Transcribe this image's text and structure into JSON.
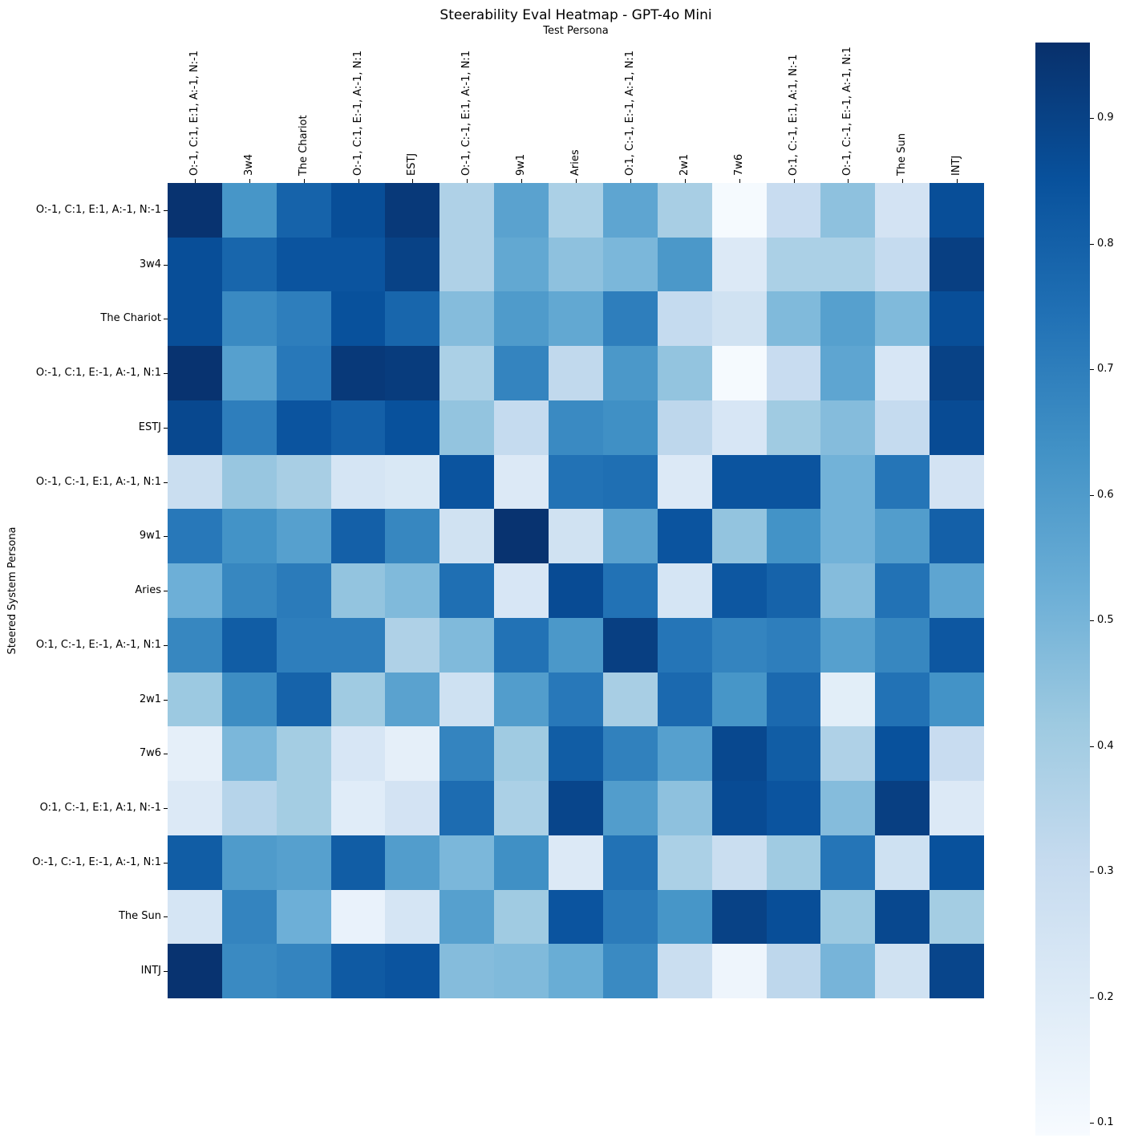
{
  "chart_data": {
    "type": "heatmap",
    "title": "Steerability Eval Heatmap - GPT-4o Mini",
    "xlabel": "Test Persona",
    "ylabel": "Steered System Persona",
    "x_categories": [
      "O:-1, C:1, E:1, A:-1, N:-1",
      "3w4",
      "The Chariot",
      "O:-1, C:1, E:-1, A:-1, N:1",
      "ESTJ",
      "O:-1, C:-1, E:1, A:-1, N:1",
      "9w1",
      "Aries",
      "O:1, C:-1, E:-1, A:-1, N:1",
      "2w1",
      "7w6",
      "O:1, C:-1, E:1, A:1, N:-1",
      "O:-1, C:-1, E:-1, A:-1, N:1",
      "The Sun",
      "INTJ"
    ],
    "y_categories": [
      "O:-1, C:1, E:1, A:-1, N:-1",
      "3w4",
      "The Chariot",
      "O:-1, C:1, E:-1, A:-1, N:1",
      "ESTJ",
      "O:-1, C:-1, E:1, A:-1, N:1",
      "9w1",
      "Aries",
      "O:1, C:-1, E:-1, A:-1, N:1",
      "2w1",
      "7w6",
      "O:1, C:-1, E:1, A:1, N:-1",
      "O:-1, C:-1, E:-1, A:-1, N:1",
      "The Sun",
      "INTJ"
    ],
    "matrix": [
      [
        0.95,
        0.62,
        0.79,
        0.86,
        0.93,
        0.37,
        0.57,
        0.38,
        0.56,
        0.39,
        0.1,
        0.3,
        0.45,
        0.25,
        0.86
      ],
      [
        0.86,
        0.78,
        0.84,
        0.84,
        0.9,
        0.37,
        0.55,
        0.45,
        0.49,
        0.61,
        0.21,
        0.38,
        0.38,
        0.31,
        0.91
      ],
      [
        0.86,
        0.66,
        0.7,
        0.85,
        0.78,
        0.47,
        0.6,
        0.55,
        0.7,
        0.31,
        0.26,
        0.48,
        0.58,
        0.48,
        0.86
      ],
      [
        0.95,
        0.58,
        0.72,
        0.93,
        0.92,
        0.38,
        0.68,
        0.32,
        0.61,
        0.44,
        0.1,
        0.3,
        0.56,
        0.23,
        0.9
      ],
      [
        0.88,
        0.7,
        0.84,
        0.8,
        0.85,
        0.44,
        0.31,
        0.66,
        0.64,
        0.33,
        0.23,
        0.41,
        0.47,
        0.31,
        0.87
      ],
      [
        0.29,
        0.43,
        0.39,
        0.24,
        0.22,
        0.84,
        0.21,
        0.74,
        0.75,
        0.21,
        0.84,
        0.84,
        0.51,
        0.73,
        0.25
      ],
      [
        0.72,
        0.63,
        0.58,
        0.8,
        0.67,
        0.26,
        0.95,
        0.26,
        0.57,
        0.84,
        0.44,
        0.63,
        0.51,
        0.59,
        0.8
      ],
      [
        0.52,
        0.67,
        0.71,
        0.44,
        0.48,
        0.75,
        0.23,
        0.87,
        0.74,
        0.24,
        0.83,
        0.79,
        0.47,
        0.74,
        0.56
      ],
      [
        0.67,
        0.81,
        0.7,
        0.7,
        0.37,
        0.48,
        0.74,
        0.61,
        0.91,
        0.73,
        0.68,
        0.7,
        0.58,
        0.67,
        0.83
      ],
      [
        0.42,
        0.65,
        0.79,
        0.41,
        0.57,
        0.27,
        0.59,
        0.72,
        0.39,
        0.77,
        0.62,
        0.77,
        0.18,
        0.74,
        0.63
      ],
      [
        0.17,
        0.49,
        0.4,
        0.23,
        0.17,
        0.68,
        0.41,
        0.81,
        0.69,
        0.58,
        0.88,
        0.81,
        0.37,
        0.85,
        0.3
      ],
      [
        0.21,
        0.35,
        0.4,
        0.19,
        0.25,
        0.76,
        0.38,
        0.89,
        0.59,
        0.45,
        0.87,
        0.84,
        0.47,
        0.91,
        0.21
      ],
      [
        0.81,
        0.6,
        0.58,
        0.81,
        0.59,
        0.49,
        0.64,
        0.21,
        0.74,
        0.38,
        0.29,
        0.41,
        0.73,
        0.27,
        0.85
      ],
      [
        0.24,
        0.68,
        0.52,
        0.15,
        0.24,
        0.58,
        0.41,
        0.84,
        0.71,
        0.62,
        0.9,
        0.86,
        0.42,
        0.88,
        0.4
      ],
      [
        0.95,
        0.66,
        0.68,
        0.82,
        0.84,
        0.47,
        0.48,
        0.53,
        0.66,
        0.29,
        0.13,
        0.33,
        0.5,
        0.26,
        0.89
      ]
    ],
    "colorbar": {
      "tick_labels": [
        "0.9",
        "0.8",
        "0.7",
        "0.6",
        "0.5",
        "0.4",
        "0.3",
        "0.2",
        "0.1"
      ],
      "tick_values": [
        0.9,
        0.8,
        0.7,
        0.6,
        0.5,
        0.4,
        0.3,
        0.2,
        0.1
      ],
      "vmin": 0.09,
      "vmax": 0.96,
      "legend_position": "right"
    },
    "colormap": {
      "name": "Blues",
      "anchors": [
        "#f7fbff",
        "#deebf7",
        "#c6dbef",
        "#9ecae1",
        "#6baed6",
        "#4292c6",
        "#2171b5",
        "#08519c",
        "#08306b"
      ]
    },
    "grid": "off"
  }
}
